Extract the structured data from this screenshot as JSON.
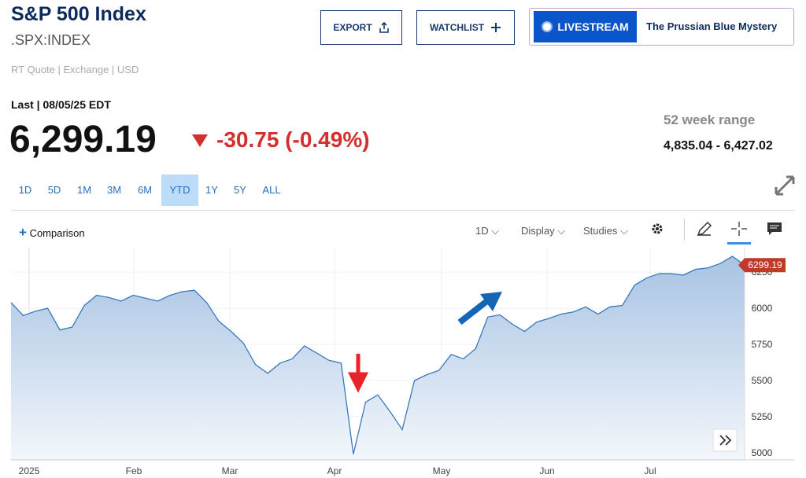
{
  "header": {
    "title": "S&P 500 Index",
    "symbol": ".SPX:INDEX",
    "quote_info": "RT Quote | Exchange | USD",
    "buttons": [
      "EXPORT",
      "WATCHLIST"
    ],
    "livestream": "LIVESTREAM",
    "livestream_title": "The Prussian Blue Mystery"
  },
  "quote": {
    "last_label": "Last | 08/05/25 EDT",
    "price": "6,299.19",
    "change": "-30.75 (-0.49%)",
    "range_label": "52 week range",
    "range_value": "4,835.04 - 6,427.02"
  },
  "ranges": [
    "1D",
    "5D",
    "1M",
    "3M",
    "6M",
    "YTD",
    "1Y",
    "5Y",
    "ALL"
  ],
  "selected_range": "YTD",
  "toolbar": {
    "comparison": "Comparison",
    "interval": "1D",
    "display": "Display",
    "studies": "Studies"
  },
  "chart_data": {
    "type": "line",
    "color": "#3a78bd",
    "grid": true,
    "xtick_labels": [
      "2025",
      "Feb",
      "Mar",
      "Apr",
      "May",
      "Jun",
      "Jul"
    ],
    "values": [
      6040,
      5950,
      5980,
      6000,
      5850,
      5870,
      6020,
      6090,
      6075,
      6050,
      6090,
      6070,
      6050,
      6090,
      6115,
      6125,
      6040,
      5910,
      5840,
      5760,
      5610,
      5550,
      5620,
      5650,
      5740,
      5690,
      5640,
      5620,
      4990,
      5350,
      5400,
      5285,
      5160,
      5500,
      5540,
      5570,
      5680,
      5650,
      5720,
      5940,
      5955,
      5890,
      5840,
      5905,
      5930,
      5960,
      5975,
      6010,
      5960,
      6010,
      6020,
      6160,
      6210,
      6240,
      6240,
      6230,
      6270,
      6280,
      6310,
      6360,
      6299.19
    ],
    "ylim": [
      4950,
      6420
    ],
    "yticks": [
      5000,
      5250,
      5500,
      5750,
      6000,
      6250
    ]
  }
}
